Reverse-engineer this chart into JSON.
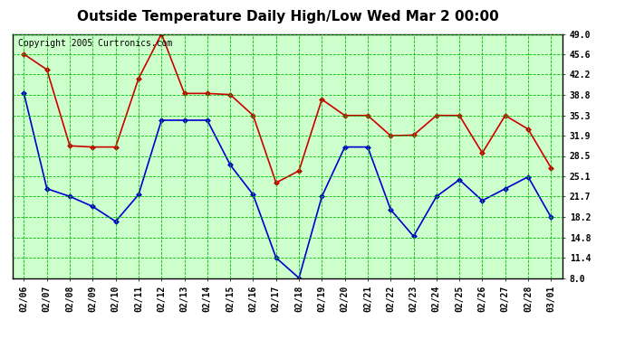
{
  "title": "Outside Temperature Daily High/Low Wed Mar 2 00:00",
  "copyright": "Copyright 2005 Curtronics.com",
  "dates": [
    "02/06",
    "02/07",
    "02/08",
    "02/09",
    "02/10",
    "02/11",
    "02/12",
    "02/13",
    "02/14",
    "02/15",
    "02/16",
    "02/17",
    "02/18",
    "02/19",
    "02/20",
    "02/21",
    "02/22",
    "02/23",
    "02/24",
    "02/25",
    "02/26",
    "02/27",
    "02/28",
    "03/01"
  ],
  "high": [
    45.6,
    43.0,
    30.2,
    30.0,
    30.0,
    41.5,
    49.0,
    39.0,
    39.0,
    38.8,
    35.3,
    24.0,
    26.0,
    38.0,
    35.3,
    35.3,
    31.9,
    32.0,
    35.3,
    35.3,
    29.0,
    35.3,
    33.0,
    26.5
  ],
  "low": [
    39.0,
    23.0,
    21.7,
    20.0,
    17.5,
    22.0,
    34.5,
    34.5,
    34.5,
    27.0,
    22.0,
    11.4,
    8.0,
    21.7,
    30.0,
    30.0,
    19.5,
    15.0,
    21.7,
    24.5,
    21.0,
    23.0,
    25.0,
    18.2
  ],
  "high_color": "#cc0000",
  "low_color": "#0000cc",
  "bg_color": "#ffffff",
  "plot_bg_color": "#ccffcc",
  "grid_color": "#00bb00",
  "border_color": "#000000",
  "title_color": "#000000",
  "copyright_color": "#000000",
  "yticks": [
    8.0,
    11.4,
    14.8,
    18.2,
    21.7,
    25.1,
    28.5,
    31.9,
    35.3,
    38.8,
    42.2,
    45.6,
    49.0
  ],
  "ylabel_color": "#000000",
  "title_fontsize": 11,
  "copyright_fontsize": 7,
  "markersize": 3,
  "linewidth": 1.2
}
